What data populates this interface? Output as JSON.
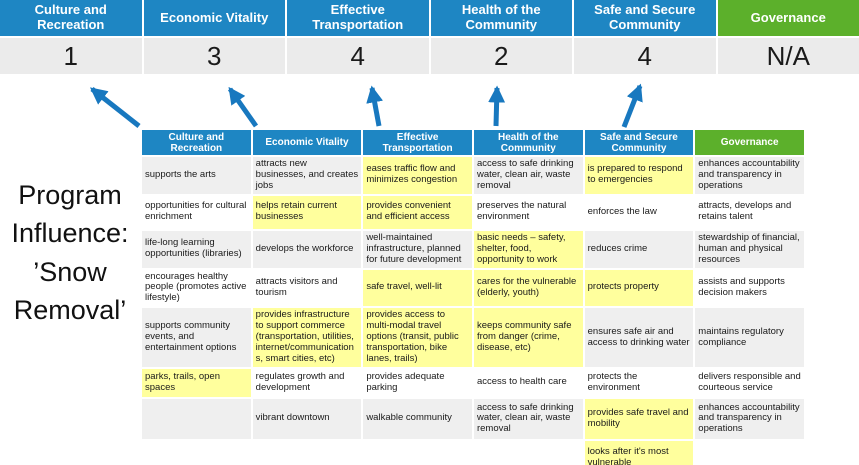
{
  "title": {
    "text": "Program\nInfluence:\n’Snow\nRemoval’"
  },
  "colors": {
    "header_blue": "#1E86C3",
    "header_green": "#5CB02B",
    "score_row_gray": "#EBEBEB",
    "band_gray": "#EFEFEF",
    "highlight_yellow": "#FFFF9D",
    "arrow_blue": "#1878BF"
  },
  "scoreboard": {
    "items": [
      {
        "label": "Culture and Recreation",
        "score": "1",
        "accent": "blue"
      },
      {
        "label": "Economic Vitality",
        "score": "3",
        "accent": "blue"
      },
      {
        "label": "Effective Transportation",
        "score": "4",
        "accent": "blue"
      },
      {
        "label": "Health of the Community",
        "score": "2",
        "accent": "blue"
      },
      {
        "label": "Safe and Secure Community",
        "score": "4",
        "accent": "blue"
      },
      {
        "label": "Governance",
        "score": "N/A",
        "accent": "green"
      }
    ]
  },
  "matrix": {
    "headers": [
      {
        "label": "Culture and Recreation",
        "accent": "blue"
      },
      {
        "label": "Economic Vitality",
        "accent": "blue"
      },
      {
        "label": "Effective Transportation",
        "accent": "blue"
      },
      {
        "label": "Health of the Community",
        "accent": "blue"
      },
      {
        "label": "Safe and Secure Community",
        "accent": "blue"
      },
      {
        "label": "Governance",
        "accent": "green"
      }
    ],
    "rows": [
      [
        {
          "t": "supports the arts",
          "h": false
        },
        {
          "t": "attracts new businesses, and creates jobs",
          "h": false
        },
        {
          "t": "eases traffic flow and minimizes congestion",
          "h": true
        },
        {
          "t": "access to safe drinking water, clean air, waste removal",
          "h": false
        },
        {
          "t": "is prepared to respond to emergencies",
          "h": true
        },
        {
          "t": "enhances accountability and transparency in operations",
          "h": false
        }
      ],
      [
        {
          "t": "opportunities for cultural enrichment",
          "h": false
        },
        {
          "t": "helps retain current businesses",
          "h": true
        },
        {
          "t": "provides convenient and efficient access",
          "h": true
        },
        {
          "t": "preserves the natural environment",
          "h": false
        },
        {
          "t": "enforces the law",
          "h": false
        },
        {
          "t": "attracts, develops and retains talent",
          "h": false
        }
      ],
      [
        {
          "t": "life-long learning opportunities (libraries)",
          "h": false
        },
        {
          "t": "develops the workforce",
          "h": false
        },
        {
          "t": "well-maintained infrastructure, planned for future development",
          "h": false
        },
        {
          "t": "basic needs – safety, shelter, food, opportunity to work",
          "h": true
        },
        {
          "t": "reduces crime",
          "h": false
        },
        {
          "t": "stewardship of financial, human and physical resources",
          "h": false
        }
      ],
      [
        {
          "t": "encourages healthy people (promotes active lifestyle)",
          "h": false
        },
        {
          "t": "attracts visitors and tourism",
          "h": false
        },
        {
          "t": "safe travel, well-lit",
          "h": true
        },
        {
          "t": "cares for the vulnerable (elderly, youth)",
          "h": true
        },
        {
          "t": "protects property",
          "h": true
        },
        {
          "t": "assists and supports decision makers",
          "h": false
        }
      ],
      [
        {
          "t": "supports community events, and entertainment options",
          "h": false
        },
        {
          "t": "provides infrastructure to support commerce (transportation, utilities, internet/communications, smart cities, etc)",
          "h": true
        },
        {
          "t": "provides access to multi-modal travel options (transit, public transportation, bike lanes, trails)",
          "h": true
        },
        {
          "t": "keeps community safe from danger (crime, disease, etc)",
          "h": true
        },
        {
          "t": "ensures safe air and access to drinking water",
          "h": false
        },
        {
          "t": "maintains regulatory compliance",
          "h": false
        }
      ],
      [
        {
          "t": "parks, trails, open spaces",
          "h": true
        },
        {
          "t": "regulates growth and development",
          "h": false
        },
        {
          "t": "provides adequate parking",
          "h": false
        },
        {
          "t": "access to health care",
          "h": false
        },
        {
          "t": "protects the environment",
          "h": false
        },
        {
          "t": "delivers responsible and courteous service",
          "h": false
        }
      ],
      [
        {
          "t": "",
          "h": false
        },
        {
          "t": "vibrant downtown",
          "h": false
        },
        {
          "t": "walkable community",
          "h": false
        },
        {
          "t": "access to safe drinking water, clean air, waste removal",
          "h": false
        },
        {
          "t": "provides safe travel and mobility",
          "h": true
        },
        {
          "t": "enhances accountability and transparency in operations",
          "h": false
        }
      ],
      [
        {
          "t": "",
          "h": false
        },
        {
          "t": "",
          "h": false
        },
        {
          "t": "",
          "h": false
        },
        {
          "t": "",
          "h": false
        },
        {
          "t": "looks after it's most vulnerable",
          "h": true
        },
        {
          "t": "",
          "h": false
        }
      ]
    ]
  }
}
